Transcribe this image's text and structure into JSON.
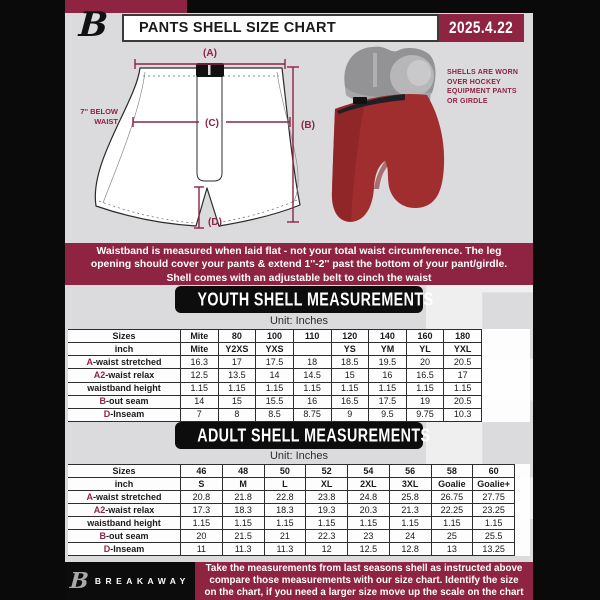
{
  "header": {
    "logo_letter": "B",
    "title": "PANTS SHELL SIZE CHART",
    "date": "2025.4.22"
  },
  "diagram": {
    "label_a": "(A)",
    "label_b": "(B)",
    "label_c": "(C)",
    "label_d": "(D)",
    "waist_note_line1": "7'' BELOW",
    "waist_note_line2": "WAIST",
    "side_note_line1": "SHELLS ARE WORN",
    "side_note_line2": "OVER HOCKEY",
    "side_note_line3": "EQUIPMENT PANTS",
    "side_note_line4": "OR GIRDLE"
  },
  "banner": {
    "line1": "Waistband is measured when laid flat - not your total waist circumference. The leg",
    "line2": "opening should cover your pants & extend 1''-2'' past the bottom of your pant/girdle.",
    "line3": "Shell comes with an adjustable belt to cinch the waist"
  },
  "youth": {
    "title": "YOUTH SHELL MEASUREMENTS",
    "unit": "Unit: Inches",
    "table": {
      "rows": [
        {
          "prefix": "",
          "label": "Sizes",
          "hdr": true,
          "values": [
            "Mite",
            "80",
            "100",
            "110",
            "120",
            "140",
            "160",
            "180"
          ]
        },
        {
          "prefix": "",
          "label": "inch",
          "hdr": true,
          "values": [
            "Mite",
            "Y2XS",
            "YXS",
            "",
            "YS",
            "YM",
            "YL",
            "YXL"
          ]
        },
        {
          "prefix": "A",
          "label": "-waist stretched",
          "hdr": false,
          "values": [
            "16.3",
            "17",
            "17.5",
            "18",
            "18.5",
            "19.5",
            "20",
            "20.5"
          ]
        },
        {
          "prefix": "A2",
          "label": "-waist relax",
          "hdr": false,
          "values": [
            "12.5",
            "13.5",
            "14",
            "14.5",
            "15",
            "16",
            "16.5",
            "17"
          ]
        },
        {
          "prefix": "",
          "label": "waistband height",
          "hdr": false,
          "values": [
            "1.15",
            "1.15",
            "1.15",
            "1.15",
            "1.15",
            "1.15",
            "1.15",
            "1.15"
          ]
        },
        {
          "prefix": "B",
          "label": "-out seam",
          "hdr": false,
          "values": [
            "14",
            "15",
            "15.5",
            "16",
            "16.5",
            "17.5",
            "19",
            "20.5"
          ]
        },
        {
          "prefix": "D",
          "label": "-Inseam",
          "hdr": false,
          "values": [
            "7",
            "8",
            "8.5",
            "8.75",
            "9",
            "9.5",
            "9.75",
            "10.3"
          ]
        }
      ]
    }
  },
  "adult": {
    "title": "ADULT SHELL MEASUREMENTS",
    "unit": "Unit: Inches",
    "table": {
      "rows": [
        {
          "prefix": "",
          "label": "Sizes",
          "hdr": true,
          "values": [
            "46",
            "48",
            "50",
            "52",
            "54",
            "56",
            "58",
            "60"
          ]
        },
        {
          "prefix": "",
          "label": "inch",
          "hdr": true,
          "values": [
            "S",
            "M",
            "L",
            "XL",
            "2XL",
            "3XL",
            "Goalie",
            "Goalie+"
          ]
        },
        {
          "prefix": "A",
          "label": "-waist stretched",
          "hdr": false,
          "values": [
            "20.8",
            "21.8",
            "22.8",
            "23.8",
            "24.8",
            "25.8",
            "26.75",
            "27.75"
          ]
        },
        {
          "prefix": "A2",
          "label": "-waist relax",
          "hdr": false,
          "values": [
            "17.3",
            "18.3",
            "18.3",
            "19.3",
            "20.3",
            "21.3",
            "22.25",
            "23.25"
          ]
        },
        {
          "prefix": "",
          "label": "waistband height",
          "hdr": false,
          "values": [
            "1.15",
            "1.15",
            "1.15",
            "1.15",
            "1.15",
            "1.15",
            "1.15",
            "1.15"
          ]
        },
        {
          "prefix": "B",
          "label": "-out seam",
          "hdr": false,
          "values": [
            "20",
            "21.5",
            "21",
            "22.3",
            "23",
            "24",
            "25",
            "25.5"
          ]
        },
        {
          "prefix": "D",
          "label": "-Inseam",
          "hdr": false,
          "values": [
            "11",
            "11.3",
            "11.3",
            "12",
            "12.5",
            "12.8",
            "13",
            "13.25"
          ]
        }
      ]
    }
  },
  "footer": {
    "logo_letter": "B",
    "brand": "BREAKAWAY",
    "line1": "Take the measurements from last seasons shell as instructed above",
    "line2": "compare those measurements  with our size chart. Identify the size",
    "line3": "on the chart, if you need a larger size move up the scale on the chart"
  },
  "watermark_letter": "B",
  "colors": {
    "maroon": "#8e2342",
    "page_bg": "#dbdbde",
    "black": "#0a0a0a",
    "shell_red": "#a02e2f",
    "pad_gray": "#939395"
  }
}
